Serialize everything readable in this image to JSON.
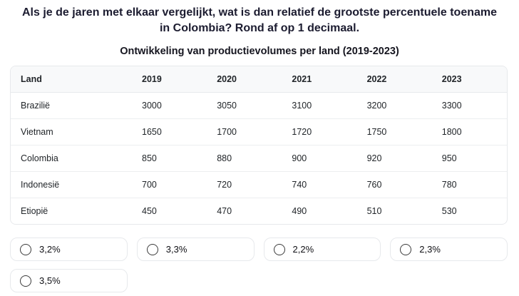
{
  "question": {
    "text": "Als je de jaren met elkaar vergelijkt, wat is dan relatief de grootste percentuele toename in Colombia? Rond af op 1 decimaal."
  },
  "table": {
    "title": "Ontwikkeling van productievolumes per land (2019-2023)",
    "columns": [
      "Land",
      "2019",
      "2020",
      "2021",
      "2022",
      "2023"
    ],
    "rows": [
      {
        "land": "Brazilië",
        "values": [
          "3000",
          "3050",
          "3100",
          "3200",
          "3300"
        ]
      },
      {
        "land": "Vietnam",
        "values": [
          "1650",
          "1700",
          "1720",
          "1750",
          "1800"
        ]
      },
      {
        "land": "Colombia",
        "values": [
          "850",
          "880",
          "900",
          "920",
          "950"
        ]
      },
      {
        "land": "Indonesië",
        "values": [
          "700",
          "720",
          "740",
          "760",
          "780"
        ]
      },
      {
        "land": "Etiopië",
        "values": [
          "450",
          "470",
          "490",
          "510",
          "530"
        ]
      }
    ]
  },
  "options": [
    "3,2%",
    "3,3%",
    "2,2%",
    "2,3%",
    "3,5%"
  ],
  "colors": {
    "question_text": "#1c1c30",
    "title_text": "#15151f",
    "table_header_bg": "#f8f9fa",
    "border": "#e7e9ec",
    "body_text": "#212529",
    "radio_outline": "#3b3b3b"
  }
}
